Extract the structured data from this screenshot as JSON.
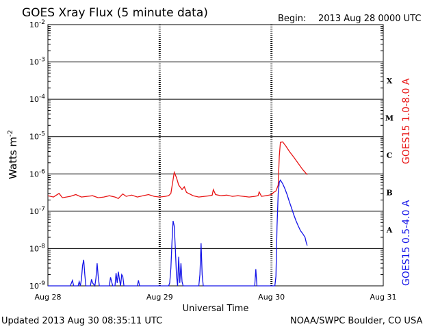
{
  "header": {
    "title": "GOES Xray Flux (5 minute data)",
    "begin_label": "Begin:",
    "begin_value": "2013 Aug 28 0000 UTC"
  },
  "footer": {
    "updated": "Updated 2013 Aug 30 08:35:11 UTC",
    "credit": "NOAA/SWPC Boulder, CO USA"
  },
  "chart_data": {
    "type": "line",
    "title": "GOES Xray Flux (5 minute data)",
    "xlabel": "Universal Time",
    "ylabel": "Watts m",
    "ylabel_superscript": "-2",
    "y_scale": "log",
    "ylim": [
      1e-09,
      0.01
    ],
    "xlim_days": [
      0,
      3
    ],
    "x_tick_labels": [
      "Aug 28",
      "Aug 29",
      "Aug 30",
      "Aug 31"
    ],
    "y_tick_exponents": [
      "-9",
      "-8",
      "-7",
      "-6",
      "-5",
      "-4",
      "-3",
      "-2"
    ],
    "y_tick_base": "10",
    "flare_classes": [
      {
        "label": "A",
        "decade": -8
      },
      {
        "label": "B",
        "decade": -7
      },
      {
        "label": "C",
        "decade": -6
      },
      {
        "label": "M",
        "decade": -5
      },
      {
        "label": "X",
        "decade": -4
      }
    ],
    "colors": {
      "long": "#e81515",
      "short": "#1414e8",
      "grid": "#000000"
    },
    "series": [
      {
        "name": "GOES15 1.0-8.0 A",
        "color": "#e81515",
        "points": [
          [
            0.0,
            2.6e-07
          ],
          [
            0.05,
            2.4e-07
          ],
          [
            0.1,
            3e-07
          ],
          [
            0.13,
            2.3e-07
          ],
          [
            0.2,
            2.5e-07
          ],
          [
            0.25,
            2.8e-07
          ],
          [
            0.3,
            2.4e-07
          ],
          [
            0.35,
            2.5e-07
          ],
          [
            0.4,
            2.6e-07
          ],
          [
            0.45,
            2.3e-07
          ],
          [
            0.5,
            2.4e-07
          ],
          [
            0.55,
            2.6e-07
          ],
          [
            0.6,
            2.4e-07
          ],
          [
            0.63,
            2.2e-07
          ],
          [
            0.67,
            2.9e-07
          ],
          [
            0.7,
            2.5e-07
          ],
          [
            0.75,
            2.7e-07
          ],
          [
            0.8,
            2.4e-07
          ],
          [
            0.85,
            2.6e-07
          ],
          [
            0.9,
            2.8e-07
          ],
          [
            0.95,
            2.5e-07
          ],
          [
            1.0,
            2.4e-07
          ],
          [
            1.05,
            2.5e-07
          ],
          [
            1.08,
            2.6e-07
          ],
          [
            1.1,
            3e-07
          ],
          [
            1.12,
            7e-07
          ],
          [
            1.13,
            1.1e-06
          ],
          [
            1.15,
            8e-07
          ],
          [
            1.17,
            5e-07
          ],
          [
            1.2,
            3.8e-07
          ],
          [
            1.22,
            4.5e-07
          ],
          [
            1.24,
            3.2e-07
          ],
          [
            1.3,
            2.6e-07
          ],
          [
            1.35,
            2.4e-07
          ],
          [
            1.4,
            2.5e-07
          ],
          [
            1.45,
            2.6e-07
          ],
          [
            1.47,
            2.7e-07
          ],
          [
            1.48,
            3.8e-07
          ],
          [
            1.5,
            2.8e-07
          ],
          [
            1.55,
            2.6e-07
          ],
          [
            1.6,
            2.7e-07
          ],
          [
            1.65,
            2.5e-07
          ],
          [
            1.7,
            2.6e-07
          ],
          [
            1.75,
            2.5e-07
          ],
          [
            1.8,
            2.4e-07
          ],
          [
            1.85,
            2.5e-07
          ],
          [
            1.88,
            2.6e-07
          ],
          [
            1.89,
            3.3e-07
          ],
          [
            1.91,
            2.5e-07
          ],
          [
            1.95,
            2.6e-07
          ],
          [
            1.98,
            2.7e-07
          ],
          [
            2.0,
            2.8e-07
          ],
          [
            2.02,
            3.2e-07
          ],
          [
            2.04,
            3.5e-07
          ],
          [
            2.06,
            5e-07
          ],
          [
            2.07,
            3e-06
          ],
          [
            2.08,
            7e-06
          ],
          [
            2.1,
            7.2e-06
          ],
          [
            2.13,
            5.5e-06
          ],
          [
            2.16,
            4e-06
          ],
          [
            2.2,
            2.8e-06
          ],
          [
            2.24,
            1.9e-06
          ],
          [
            2.28,
            1.3e-06
          ],
          [
            2.32,
            9.5e-07
          ]
        ]
      },
      {
        "name": "GOES15 0.5-4.0 A",
        "color": "#1414e8",
        "points": [
          [
            0.0,
            1e-09
          ],
          [
            0.2,
            1e-09
          ],
          [
            0.22,
            1.4e-09
          ],
          [
            0.23,
            1e-09
          ],
          [
            0.27,
            1e-09
          ],
          [
            0.28,
            1.3e-09
          ],
          [
            0.29,
            1e-09
          ],
          [
            0.3,
            1.5e-09
          ],
          [
            0.31,
            3.5e-09
          ],
          [
            0.32,
            5e-09
          ],
          [
            0.33,
            2e-09
          ],
          [
            0.34,
            1e-09
          ],
          [
            0.38,
            1e-09
          ],
          [
            0.39,
            1.5e-09
          ],
          [
            0.4,
            1.2e-09
          ],
          [
            0.42,
            1e-09
          ],
          [
            0.43,
            1.6e-09
          ],
          [
            0.44,
            4e-09
          ],
          [
            0.45,
            1.8e-09
          ],
          [
            0.46,
            1e-09
          ],
          [
            0.55,
            1e-09
          ],
          [
            0.56,
            1.7e-09
          ],
          [
            0.57,
            1.3e-09
          ],
          [
            0.58,
            1e-09
          ],
          [
            0.6,
            1e-09
          ],
          [
            0.61,
            2.2e-09
          ],
          [
            0.62,
            1.2e-09
          ],
          [
            0.63,
            2.4e-09
          ],
          [
            0.64,
            1.5e-09
          ],
          [
            0.65,
            1e-09
          ],
          [
            0.66,
            2e-09
          ],
          [
            0.67,
            1.8e-09
          ],
          [
            0.68,
            1e-09
          ],
          [
            0.8,
            1e-09
          ],
          [
            0.81,
            1.4e-09
          ],
          [
            0.82,
            1e-09
          ],
          [
            1.08,
            1e-09
          ],
          [
            1.09,
            1.2e-09
          ],
          [
            1.1,
            3e-09
          ],
          [
            1.11,
            1.5e-08
          ],
          [
            1.12,
            5.5e-08
          ],
          [
            1.13,
            4e-08
          ],
          [
            1.14,
            1e-08
          ],
          [
            1.15,
            2e-09
          ],
          [
            1.16,
            1e-09
          ],
          [
            1.17,
            6e-09
          ],
          [
            1.18,
            1.2e-09
          ],
          [
            1.19,
            4e-09
          ],
          [
            1.2,
            1.3e-09
          ],
          [
            1.21,
            1e-09
          ],
          [
            1.35,
            1e-09
          ],
          [
            1.36,
            2e-09
          ],
          [
            1.37,
            1.4e-08
          ],
          [
            1.38,
            2e-09
          ],
          [
            1.39,
            1e-09
          ],
          [
            1.85,
            1e-09
          ],
          [
            1.86,
            2.8e-09
          ],
          [
            1.87,
            1e-09
          ],
          [
            2.03,
            1e-09
          ],
          [
            2.04,
            1.8e-09
          ],
          [
            2.05,
            4e-08
          ],
          [
            2.06,
            3e-07
          ],
          [
            2.07,
            6e-07
          ],
          [
            2.08,
            6.8e-07
          ],
          [
            2.1,
            5.5e-07
          ],
          [
            2.12,
            4e-07
          ],
          [
            2.14,
            2.8e-07
          ],
          [
            2.16,
            1.8e-07
          ],
          [
            2.18,
            1.2e-07
          ],
          [
            2.2,
            8e-08
          ],
          [
            2.22,
            5.5e-08
          ],
          [
            2.24,
            4e-08
          ],
          [
            2.26,
            3e-08
          ],
          [
            2.28,
            2.5e-08
          ],
          [
            2.3,
            2e-08
          ],
          [
            2.31,
            1.5e-08
          ],
          [
            2.32,
            1.2e-08
          ]
        ]
      }
    ]
  }
}
